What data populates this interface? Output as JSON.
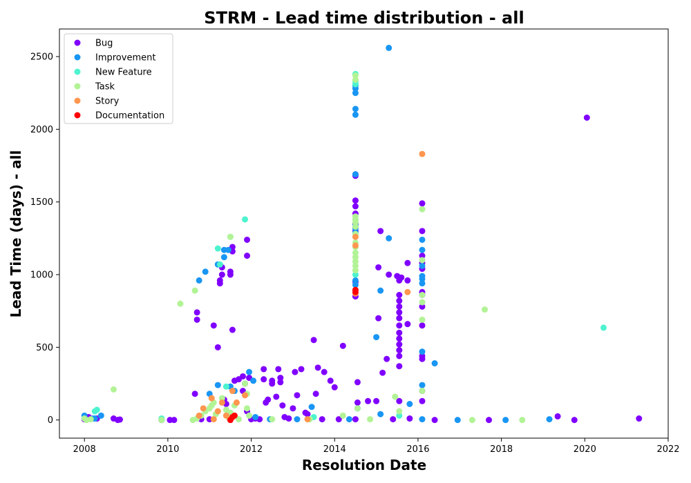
{
  "chart_data": {
    "type": "scatter",
    "title": "STRM - Lead time distribution - all",
    "xlabel": "Resolution Date",
    "ylabel": "Lead Time (days) - all",
    "xlim": [
      2007.4,
      2022.0
    ],
    "ylim": [
      -125,
      2690
    ],
    "x_ticks": [
      2008,
      2010,
      2012,
      2014,
      2016,
      2018,
      2020,
      2022
    ],
    "y_ticks": [
      0,
      500,
      1000,
      1500,
      2000,
      2500
    ],
    "legend_position": "top-left",
    "grid": false,
    "series": [
      {
        "name": "Bug",
        "color": "#8000ff",
        "points": [
          [
            2008.0,
            5
          ],
          [
            2008.1,
            20
          ],
          [
            2008.3,
            10
          ],
          [
            2008.7,
            10
          ],
          [
            2008.8,
            0
          ],
          [
            2008.85,
            3
          ],
          [
            2009.85,
            0
          ],
          [
            2010.05,
            0
          ],
          [
            2010.15,
            0
          ],
          [
            2010.65,
            180
          ],
          [
            2010.7,
            690
          ],
          [
            2010.7,
            740
          ],
          [
            2010.8,
            5
          ],
          [
            2011.0,
            5
          ],
          [
            2011.1,
            650
          ],
          [
            2011.2,
            500
          ],
          [
            2011.25,
            940
          ],
          [
            2011.25,
            960
          ],
          [
            2011.3,
            1000
          ],
          [
            2011.3,
            1050
          ],
          [
            2011.35,
            140
          ],
          [
            2011.4,
            110
          ],
          [
            2011.5,
            1000
          ],
          [
            2011.5,
            1020
          ],
          [
            2011.55,
            620
          ],
          [
            2011.55,
            1160
          ],
          [
            2011.55,
            1190
          ],
          [
            2011.6,
            270
          ],
          [
            2011.7,
            280
          ],
          [
            2011.8,
            300
          ],
          [
            2011.8,
            200
          ],
          [
            2011.85,
            250
          ],
          [
            2011.9,
            1130
          ],
          [
            2011.9,
            1240
          ],
          [
            2011.95,
            290
          ],
          [
            2011.9,
            60
          ],
          [
            2012.0,
            5
          ],
          [
            2012.1,
            10
          ],
          [
            2012.2,
            5
          ],
          [
            2012.3,
            350
          ],
          [
            2012.3,
            280
          ],
          [
            2012.35,
            120
          ],
          [
            2012.4,
            140
          ],
          [
            2012.5,
            270
          ],
          [
            2012.5,
            250
          ],
          [
            2012.65,
            350
          ],
          [
            2012.7,
            290
          ],
          [
            2012.7,
            260
          ],
          [
            2012.6,
            160
          ],
          [
            2012.75,
            100
          ],
          [
            2012.8,
            20
          ],
          [
            2012.9,
            10
          ],
          [
            2013.0,
            80
          ],
          [
            2013.05,
            330
          ],
          [
            2013.1,
            170
          ],
          [
            2013.2,
            350
          ],
          [
            2013.3,
            50
          ],
          [
            2013.35,
            40
          ],
          [
            2013.5,
            550
          ],
          [
            2013.55,
            180
          ],
          [
            2013.6,
            360
          ],
          [
            2013.7,
            5
          ],
          [
            2013.75,
            330
          ],
          [
            2013.9,
            270
          ],
          [
            2014.0,
            225
          ],
          [
            2014.1,
            5
          ],
          [
            2014.2,
            510
          ],
          [
            2014.5,
            5
          ],
          [
            2014.55,
            260
          ],
          [
            2014.55,
            120
          ],
          [
            2014.5,
            850
          ],
          [
            2014.5,
            950
          ],
          [
            2014.5,
            1300
          ],
          [
            2014.5,
            1350
          ],
          [
            2014.5,
            1420
          ],
          [
            2014.5,
            1470
          ],
          [
            2014.5,
            1510
          ],
          [
            2014.5,
            1690
          ],
          [
            2014.5,
            1680
          ],
          [
            2014.8,
            130
          ],
          [
            2015.0,
            130
          ],
          [
            2015.05,
            1050
          ],
          [
            2015.05,
            700
          ],
          [
            2015.1,
            1300
          ],
          [
            2015.15,
            325
          ],
          [
            2015.25,
            420
          ],
          [
            2015.3,
            1000
          ],
          [
            2015.4,
            5
          ],
          [
            2015.5,
            990
          ],
          [
            2015.55,
            960
          ],
          [
            2015.55,
            860
          ],
          [
            2015.55,
            820
          ],
          [
            2015.55,
            780
          ],
          [
            2015.55,
            740
          ],
          [
            2015.55,
            700
          ],
          [
            2015.55,
            650
          ],
          [
            2015.55,
            600
          ],
          [
            2015.55,
            560
          ],
          [
            2015.55,
            520
          ],
          [
            2015.55,
            480
          ],
          [
            2015.55,
            440
          ],
          [
            2015.55,
            370
          ],
          [
            2015.55,
            130
          ],
          [
            2015.6,
            980
          ],
          [
            2015.75,
            660
          ],
          [
            2015.75,
            960
          ],
          [
            2015.75,
            1080
          ],
          [
            2015.8,
            10
          ],
          [
            2016.1,
            1490
          ],
          [
            2016.1,
            1300
          ],
          [
            2016.1,
            1130
          ],
          [
            2016.1,
            1080
          ],
          [
            2016.1,
            1040
          ],
          [
            2016.1,
            880
          ],
          [
            2016.1,
            860
          ],
          [
            2016.1,
            780
          ],
          [
            2016.1,
            650
          ],
          [
            2016.1,
            440
          ],
          [
            2016.1,
            420
          ],
          [
            2016.1,
            200
          ],
          [
            2016.1,
            130
          ],
          [
            2016.4,
            0
          ],
          [
            2017.7,
            0
          ],
          [
            2019.35,
            25
          ],
          [
            2019.75,
            0
          ],
          [
            2020.05,
            2080
          ],
          [
            2021.3,
            10
          ]
        ]
      },
      {
        "name": "Improvement",
        "color": "#1996f3",
        "points": [
          [
            2008.0,
            30
          ],
          [
            2008.2,
            10
          ],
          [
            2008.25,
            10
          ],
          [
            2008.4,
            30
          ],
          [
            2009.85,
            0
          ],
          [
            2010.75,
            960
          ],
          [
            2010.9,
            1020
          ],
          [
            2011.0,
            180
          ],
          [
            2011.2,
            240
          ],
          [
            2011.2,
            1070
          ],
          [
            2011.35,
            1120
          ],
          [
            2011.35,
            1170
          ],
          [
            2011.45,
            1170
          ],
          [
            2011.5,
            230
          ],
          [
            2011.6,
            200
          ],
          [
            2011.95,
            330
          ],
          [
            2012.05,
            270
          ],
          [
            2012.1,
            20
          ],
          [
            2012.45,
            5
          ],
          [
            2013.1,
            5
          ],
          [
            2013.45,
            90
          ],
          [
            2014.35,
            5
          ],
          [
            2014.5,
            2300
          ],
          [
            2014.5,
            2280
          ],
          [
            2014.5,
            2250
          ],
          [
            2014.5,
            2140
          ],
          [
            2014.5,
            2100
          ],
          [
            2014.5,
            1690
          ],
          [
            2014.5,
            1340
          ],
          [
            2014.5,
            1320
          ],
          [
            2014.5,
            1290
          ],
          [
            2014.5,
            960
          ],
          [
            2014.5,
            930
          ],
          [
            2014.5,
            880
          ],
          [
            2014.55,
            80
          ],
          [
            2015.0,
            570
          ],
          [
            2015.1,
            890
          ],
          [
            2015.1,
            40
          ],
          [
            2015.3,
            1250
          ],
          [
            2015.3,
            2560
          ],
          [
            2015.8,
            110
          ],
          [
            2016.1,
            1240
          ],
          [
            2016.1,
            1170
          ],
          [
            2016.1,
            1060
          ],
          [
            2016.1,
            990
          ],
          [
            2016.1,
            970
          ],
          [
            2016.1,
            940
          ],
          [
            2016.1,
            470
          ],
          [
            2016.1,
            240
          ],
          [
            2016.1,
            5
          ],
          [
            2016.4,
            390
          ],
          [
            2016.95,
            0
          ],
          [
            2018.1,
            0
          ],
          [
            2019.15,
            5
          ]
        ]
      },
      {
        "name": "New Feature",
        "color": "#4df3ce",
        "points": [
          [
            2008.3,
            70
          ],
          [
            2008.25,
            60
          ],
          [
            2009.85,
            10
          ],
          [
            2011.2,
            1180
          ],
          [
            2011.25,
            1070
          ],
          [
            2011.4,
            230
          ],
          [
            2011.5,
            1260
          ],
          [
            2011.85,
            1380
          ],
          [
            2013.5,
            20
          ],
          [
            2014.5,
            2380
          ],
          [
            2014.5,
            2330
          ],
          [
            2014.5,
            2310
          ],
          [
            2014.5,
            1380
          ],
          [
            2014.5,
            1000
          ],
          [
            2015.55,
            30
          ],
          [
            2020.45,
            635
          ]
        ]
      },
      {
        "name": "Task",
        "color": "#b2f396",
        "points": [
          [
            2008.0,
            10
          ],
          [
            2008.05,
            0
          ],
          [
            2008.15,
            5
          ],
          [
            2008.7,
            210
          ],
          [
            2009.85,
            0
          ],
          [
            2010.3,
            800
          ],
          [
            2010.65,
            890
          ],
          [
            2010.6,
            0
          ],
          [
            2010.7,
            10
          ],
          [
            2010.8,
            30
          ],
          [
            2010.9,
            60
          ],
          [
            2011.0,
            80
          ],
          [
            2011.05,
            100
          ],
          [
            2011.1,
            120
          ],
          [
            2011.15,
            40
          ],
          [
            2011.3,
            150
          ],
          [
            2011.4,
            70
          ],
          [
            2011.45,
            20
          ],
          [
            2011.5,
            1260
          ],
          [
            2011.5,
            50
          ],
          [
            2011.6,
            100
          ],
          [
            2011.7,
            5
          ],
          [
            2011.85,
            250
          ],
          [
            2011.9,
            180
          ],
          [
            2011.9,
            80
          ],
          [
            2011.95,
            30
          ],
          [
            2012.5,
            5
          ],
          [
            2013.4,
            5
          ],
          [
            2014.2,
            30
          ],
          [
            2014.5,
            2370
          ],
          [
            2014.5,
            2340
          ],
          [
            2014.5,
            1400
          ],
          [
            2014.5,
            1380
          ],
          [
            2014.5,
            1360
          ],
          [
            2014.5,
            1330
          ],
          [
            2014.5,
            1280
          ],
          [
            2014.5,
            1260
          ],
          [
            2014.5,
            1220
          ],
          [
            2014.5,
            1190
          ],
          [
            2014.5,
            1150
          ],
          [
            2014.5,
            1120
          ],
          [
            2014.5,
            1090
          ],
          [
            2014.5,
            1060
          ],
          [
            2014.5,
            1030
          ],
          [
            2014.55,
            80
          ],
          [
            2014.85,
            5
          ],
          [
            2015.45,
            160
          ],
          [
            2015.55,
            60
          ],
          [
            2016.1,
            1450
          ],
          [
            2016.1,
            1100
          ],
          [
            2016.1,
            860
          ],
          [
            2016.1,
            810
          ],
          [
            2016.1,
            690
          ],
          [
            2016.1,
            200
          ],
          [
            2017.3,
            0
          ],
          [
            2017.6,
            760
          ],
          [
            2018.5,
            0
          ]
        ]
      },
      {
        "name": "Story",
        "color": "#ff964f",
        "points": [
          [
            2010.75,
            30
          ],
          [
            2010.85,
            80
          ],
          [
            2011.05,
            150
          ],
          [
            2011.1,
            5
          ],
          [
            2011.2,
            60
          ],
          [
            2011.3,
            120
          ],
          [
            2011.4,
            30
          ],
          [
            2011.55,
            200
          ],
          [
            2011.65,
            120
          ],
          [
            2011.85,
            170
          ],
          [
            2013.35,
            5
          ],
          [
            2014.5,
            1260
          ],
          [
            2014.5,
            1200
          ],
          [
            2014.5,
            870
          ],
          [
            2015.75,
            880
          ],
          [
            2016.1,
            1830
          ]
        ]
      },
      {
        "name": "Documentation",
        "color": "#ff0000",
        "points": [
          [
            2011.5,
            0
          ],
          [
            2011.55,
            20
          ],
          [
            2011.6,
            30
          ],
          [
            2014.5,
            895
          ],
          [
            2014.5,
            880
          ]
        ]
      }
    ]
  }
}
